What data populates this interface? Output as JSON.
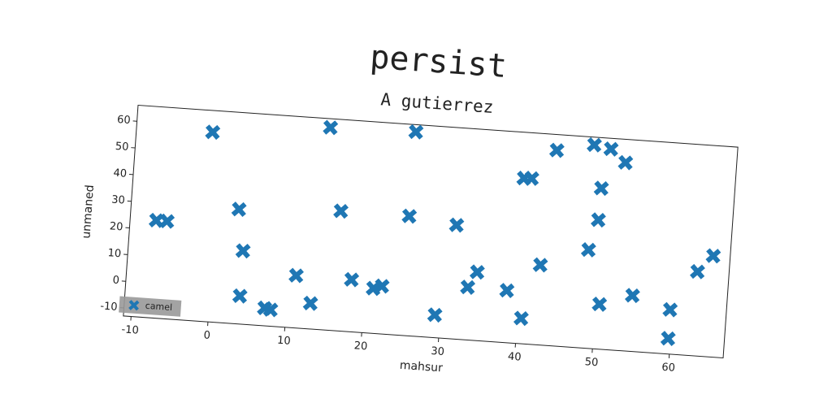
{
  "chart_data": {
    "type": "scatter",
    "title": "persist",
    "subtitle": "A gutierrez",
    "x_label": "mahsur",
    "y_label": "unmaned",
    "xlim": [
      -11,
      67
    ],
    "ylim": [
      -13,
      66
    ],
    "xticks": [
      -10,
      0,
      10,
      20,
      30,
      40,
      50,
      60
    ],
    "yticks": [
      -10,
      0,
      10,
      20,
      30,
      40,
      50,
      60
    ],
    "legend": "lower left",
    "grid": false,
    "marker": "X",
    "series": [
      {
        "name": "camel",
        "color": "#1f77b4",
        "x": [
          -7.6,
          -6.2,
          -1.1,
          3.0,
          3.9,
          3.9,
          7.2,
          8.0,
          11.0,
          13.1,
          14.1,
          16.2,
          18.2,
          21.1,
          22.2,
          25.2,
          25.1,
          29.3,
          31.3,
          33.3,
          34.4,
          38.4,
          40.5,
          39.6,
          40.6,
          42.5,
          43.6,
          48.6,
          48.4,
          50.6,
          49.7,
          49.6,
          50.5,
          52.6,
          54.7,
          59.7,
          59.7,
          62.9,
          64.8
        ],
        "values": [
          23.5,
          23.5,
          57.9,
          29.8,
          14.4,
          -2.5,
          -6.4,
          -6.8,
          6.6,
          -3.4,
          62.7,
          31.8,
          6.5,
          3.8,
          4.9,
          63.3,
          31.7,
          -4.5,
          29.6,
          6.7,
          12.6,
          6.5,
          -3.5,
          48.8,
          49.0,
          16.9,
          60.1,
          23.8,
          63.1,
          62.0,
          47.1,
          35.2,
          3.8,
          57.3,
          7.9,
          3.6,
          -7.2,
          18.5,
          24.8
        ]
      }
    ]
  }
}
